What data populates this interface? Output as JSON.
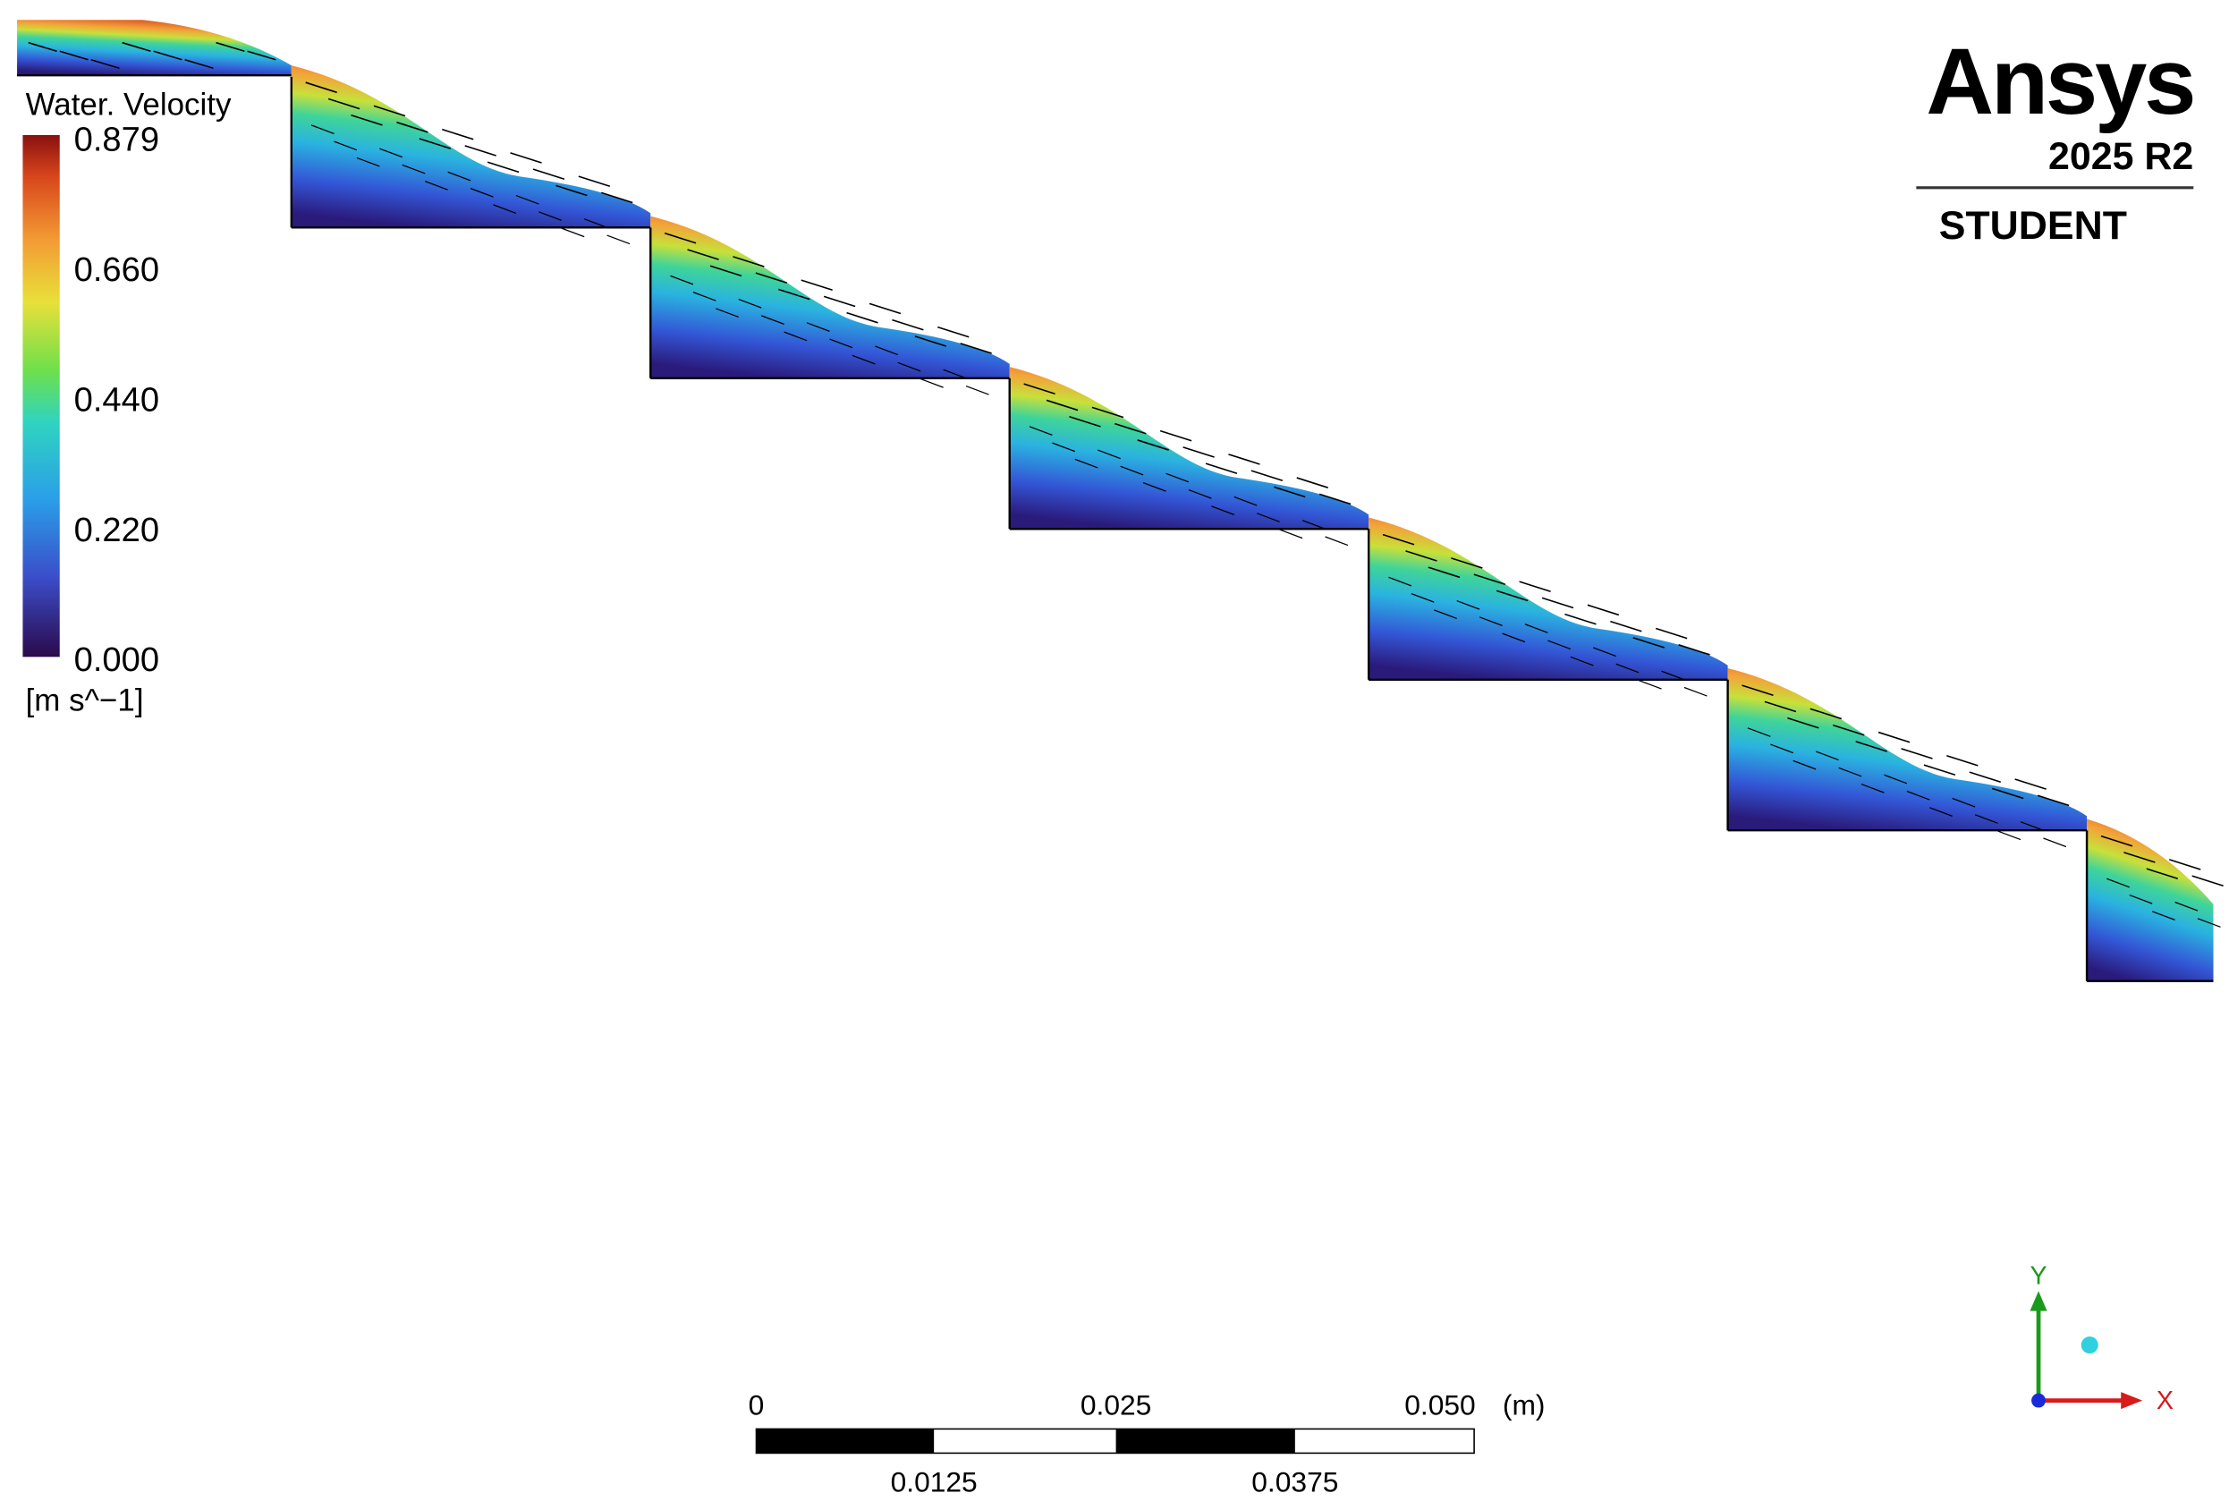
{
  "legend": {
    "title": "Water. Velocity",
    "ticks": [
      "0.879",
      "0.660",
      "0.440",
      "0.220",
      "0.000"
    ],
    "unit": "[m s^−1]"
  },
  "logo": {
    "brand": "Ansys",
    "version": "2025 R2",
    "edition": "STUDENT"
  },
  "scale_bar": {
    "top_labels": [
      "0",
      "0.025",
      "0.050"
    ],
    "unit": "(m)",
    "bottom_labels": [
      "0.0125",
      "0.0375"
    ]
  },
  "axes": {
    "y": "Y",
    "x": "X"
  }
}
